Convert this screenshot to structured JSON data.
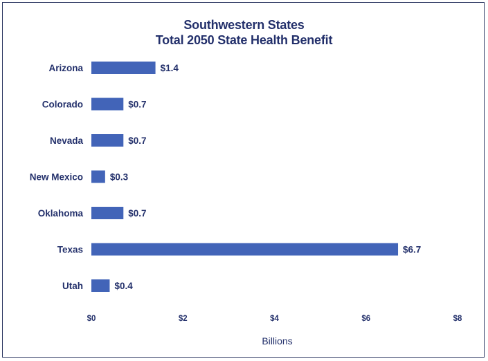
{
  "chart_data": {
    "type": "bar",
    "orientation": "horizontal",
    "title": "Southwestern States",
    "subtitle": "Total 2050 State Health Benefit",
    "categories": [
      "Arizona",
      "Colorado",
      "Nevada",
      "New Mexico",
      "Oklahoma",
      "Texas",
      "Utah"
    ],
    "values": [
      1.4,
      0.7,
      0.7,
      0.3,
      0.7,
      6.7,
      0.4
    ],
    "value_labels": [
      "$1.4",
      "$0.7",
      "$0.7",
      "$0.3",
      "$0.7",
      "$6.7",
      "$0.4"
    ],
    "xlabel": "Billions",
    "ylabel": "",
    "xlim": [
      0,
      8
    ],
    "x_ticks": [
      0,
      2,
      4,
      6,
      8
    ],
    "x_tick_labels": [
      "$0",
      "$2",
      "$4",
      "$6",
      "$8"
    ],
    "grid": false,
    "legend": "none",
    "bar_color": "#4264b8",
    "text_color": "#23306b",
    "border_color": "#2a3560"
  }
}
